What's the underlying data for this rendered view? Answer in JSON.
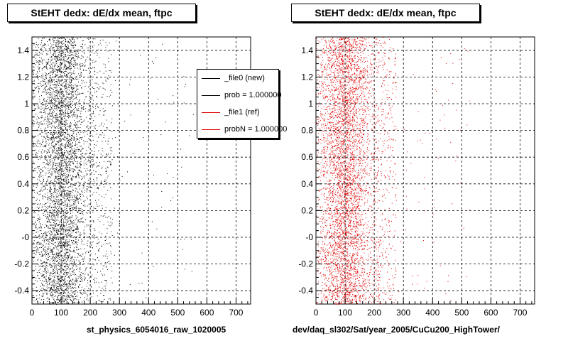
{
  "chart_data": [
    {
      "type": "scatter",
      "title": "StEHT dedx: dE/dx mean, ftpc",
      "xlabel": "st_physics_6054016_raw_1020005",
      "ylabel": "",
      "xlim": [
        0,
        750
      ],
      "ylim": [
        -0.5,
        1.5
      ],
      "x_ticks": [
        0,
        100,
        200,
        300,
        400,
        500,
        600,
        700
      ],
      "y_ticks": [
        -0.4,
        -0.2,
        0,
        0.2,
        0.4,
        0.6,
        0.8,
        1,
        1.2,
        1.4
      ],
      "y_tick_labels": [
        "-0.4",
        "-0.2",
        "-0",
        "0.2",
        "0.4",
        "0.6",
        "0.8",
        "1",
        "1.2",
        "1.4"
      ],
      "grid": true,
      "marker_color": "#000000",
      "density_profile": {
        "dense_x_range": [
          0,
          215
        ],
        "peak_x": 100,
        "sparse_tail_x_max": 560
      },
      "legend": {
        "placement": "top-right",
        "entries": [
          {
            "label": "_file0 (new)",
            "color": "#000000"
          },
          {
            "label": "prob = 1.000000",
            "color": "#000000"
          },
          {
            "label": "_file1 (ref)",
            "color": "#e00000"
          },
          {
            "label": "probN = 1.000000",
            "color": "#e00000"
          }
        ]
      }
    },
    {
      "type": "scatter",
      "title": "StEHT dedx: dE/dx mean, ftpc",
      "xlabel": "dev/daq_sl302/Sat/year_2005/CuCu200_HighTower/",
      "ylabel": "",
      "xlim": [
        0,
        750
      ],
      "ylim": [
        -0.5,
        1.5
      ],
      "x_ticks": [
        0,
        100,
        200,
        300,
        400,
        500,
        600,
        700
      ],
      "y_ticks": [
        -0.4,
        -0.2,
        0,
        0.2,
        0.4,
        0.6,
        0.8,
        1,
        1.2,
        1.4
      ],
      "y_tick_labels": [
        "-0.4",
        "-0.2",
        "-0",
        "0.2",
        "0.4",
        "0.6",
        "0.8",
        "1",
        "1.2",
        "1.4"
      ],
      "grid": true,
      "marker_color": "#e00000",
      "density_profile": {
        "dense_x_range": [
          0,
          215
        ],
        "peak_x": 100,
        "sparse_tail_x_max": 540
      }
    }
  ]
}
